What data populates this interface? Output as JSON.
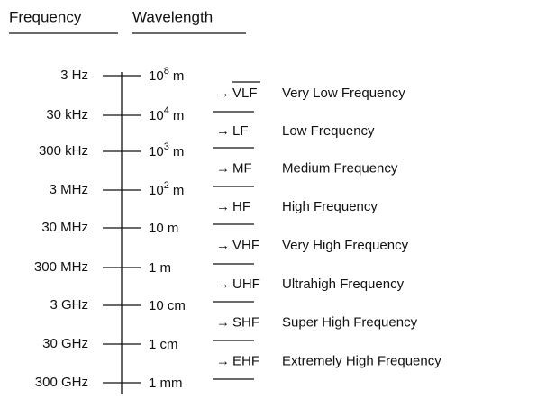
{
  "header": {
    "frequency": "Frequency",
    "wavelength": "Wavelength"
  },
  "rows": [
    {
      "frequency": "3 Hz",
      "wavelength": {
        "base": "10",
        "exp": "8",
        "unit": "m"
      }
    },
    {
      "frequency": "30 kHz",
      "wavelength": {
        "base": "10",
        "exp": "4",
        "unit": "m"
      }
    },
    {
      "frequency": "300 kHz",
      "wavelength": {
        "base": "10",
        "exp": "3",
        "unit": "m"
      }
    },
    {
      "frequency": "3 MHz",
      "wavelength": {
        "base": "10",
        "exp": "2",
        "unit": "m"
      }
    },
    {
      "frequency": "30 MHz",
      "wavelength": {
        "text": "10 m"
      }
    },
    {
      "frequency": "300 MHz",
      "wavelength": {
        "text": "1 m"
      }
    },
    {
      "frequency": "3 GHz",
      "wavelength": {
        "text": "10 cm"
      }
    },
    {
      "frequency": "30 GHz",
      "wavelength": {
        "text": "1 cm"
      }
    },
    {
      "frequency": "300 GHz",
      "wavelength": {
        "text": "1 mm"
      }
    }
  ],
  "bands": [
    {
      "arrow": "→",
      "abbr": "VLF",
      "name": "Very Low Frequency"
    },
    {
      "arrow": "→",
      "abbr": "LF",
      "name": "Low Frequency"
    },
    {
      "arrow": "→",
      "abbr": "MF",
      "name": "Medium Frequency"
    },
    {
      "arrow": "→",
      "abbr": "HF",
      "name": "High Frequency"
    },
    {
      "arrow": "→",
      "abbr": "VHF",
      "name": "Very High Frequency"
    },
    {
      "arrow": "→",
      "abbr": "UHF",
      "name": "Ultrahigh Frequency"
    },
    {
      "arrow": "→",
      "abbr": "SHF",
      "name": "Super High Frequency"
    },
    {
      "arrow": "→",
      "abbr": "EHF",
      "name": "Extremely High Frequency"
    }
  ]
}
